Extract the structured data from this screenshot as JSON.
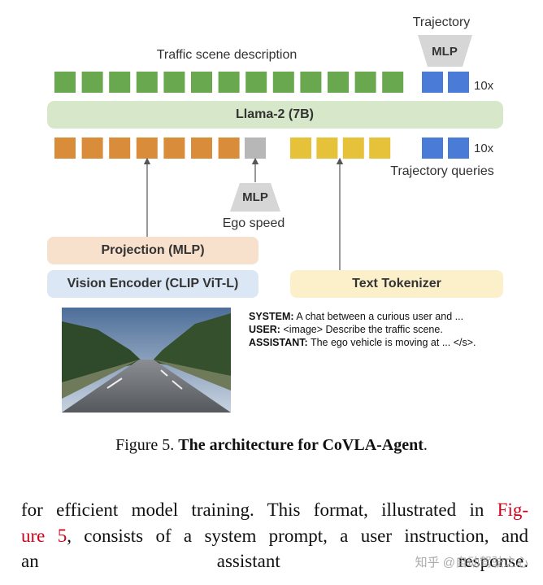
{
  "diagram": {
    "output_label": "Trajectory",
    "mlp_top": "MLP",
    "description_label": "Traffic scene description",
    "repeat_top": "10x",
    "llm": "Llama-2 (7B)",
    "repeat_bottom": "10x",
    "queries_label": "Trajectory queries",
    "mlp_ego": "MLP",
    "ego_label": "Ego speed",
    "projection": "Projection (MLP)",
    "vision_encoder": "Vision Encoder (CLIP ViT-L)",
    "text_tokenizer": "Text Tokenizer",
    "prompt": [
      {
        "role": "SYSTEM:",
        "text": "A chat between a curious user and ..."
      },
      {
        "role": "USER:",
        "text": "<image> Describe the traffic scene."
      },
      {
        "role": "ASSISTANT:",
        "text": "The ego vehicle is moving at ... </s>."
      }
    ]
  },
  "caption": {
    "label": "Figure 5.",
    "title": "The architecture for CoVLA-Agent",
    "end": "."
  },
  "paragraph": {
    "lines": [
      [
        {
          "text": "for efficient model training. This format, illustrated in"
        },
        {
          "text": "Fig-",
          "link": true
        }
      ],
      [
        {
          "text": "ure 5",
          "link": true
        },
        {
          "text": ", consists of a system prompt, a user instruction, and"
        }
      ],
      [
        {
          "text": "an assistant response."
        }
      ]
    ]
  },
  "watermark": "知乎 @自动驾驶之心"
}
